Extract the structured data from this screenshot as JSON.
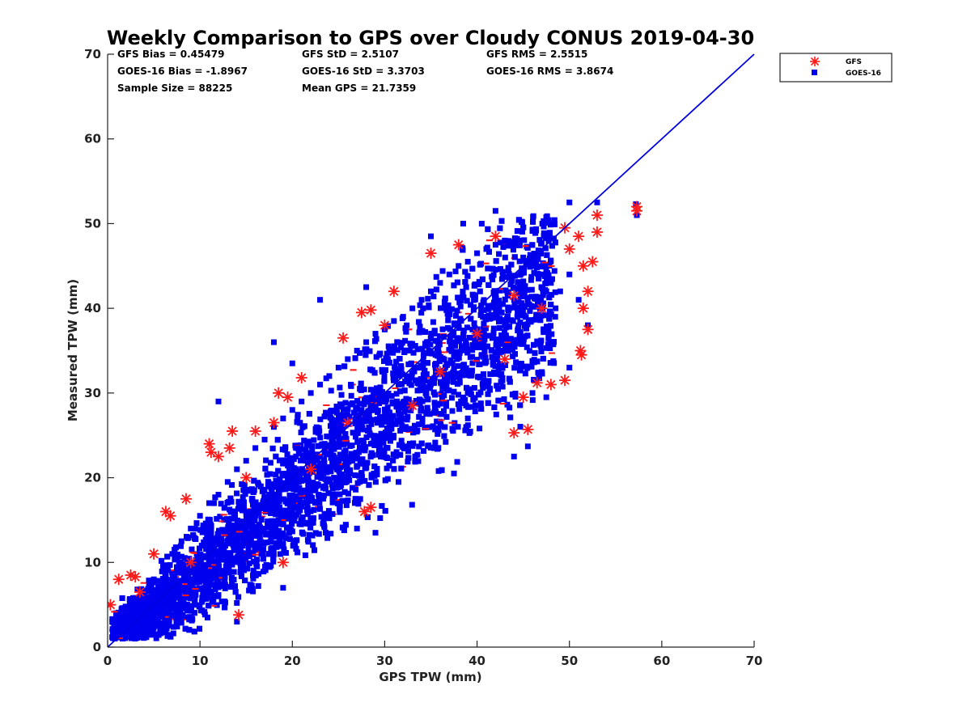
{
  "chart_data": {
    "type": "scatter",
    "title": "Weekly Comparison to GPS over Cloudy CONUS 2019-04-30",
    "xlabel": "GPS TPW (mm)",
    "ylabel": "Measured TPW (mm)",
    "xlim": [
      0,
      70
    ],
    "ylim": [
      0,
      70
    ],
    "xticks": [
      0,
      10,
      20,
      30,
      40,
      50,
      60,
      70
    ],
    "yticks": [
      0,
      10,
      20,
      30,
      40,
      50,
      60,
      70
    ],
    "grid": false,
    "legend_position": "top-right, outside plot",
    "reference_line": {
      "x": [
        0,
        70
      ],
      "y": [
        0,
        70
      ],
      "color": "#0000dd"
    },
    "stats": [
      [
        "GFS Bias = 0.45479",
        "GFS StD = 2.5107",
        "GFS RMS = 2.5515"
      ],
      [
        "GOES-16 Bias = -1.8967",
        "GOES-16 StD = 3.3703",
        "GOES-16 RMS = 3.8674"
      ],
      [
        "Sample Size = 88225",
        "Mean GPS = 21.7359",
        ""
      ]
    ],
    "series": [
      {
        "name": "GFS",
        "marker": "asterisk",
        "color": "#ff1a1a",
        "points": [
          [
            0.3,
            5.0
          ],
          [
            1.2,
            8.0
          ],
          [
            2.5,
            8.5
          ],
          [
            3.0,
            8.3
          ],
          [
            5.0,
            11.0
          ],
          [
            6.3,
            16.0
          ],
          [
            6.8,
            15.5
          ],
          [
            8.5,
            17.5
          ],
          [
            11.0,
            24.0
          ],
          [
            11.2,
            23.0
          ],
          [
            12.0,
            22.5
          ],
          [
            13.5,
            25.5
          ],
          [
            13.2,
            23.5
          ],
          [
            14.2,
            3.8
          ],
          [
            16.0,
            25.5
          ],
          [
            18.0,
            26.5
          ],
          [
            18.5,
            30.0
          ],
          [
            19.5,
            29.5
          ],
          [
            21.0,
            31.8
          ],
          [
            25.5,
            36.5
          ],
          [
            27.5,
            39.5
          ],
          [
            28.5,
            39.8
          ],
          [
            30.0,
            38.0
          ],
          [
            27.8,
            16.0
          ],
          [
            28.5,
            16.5
          ],
          [
            35.0,
            46.5
          ],
          [
            38.0,
            47.5
          ],
          [
            42.0,
            48.5
          ],
          [
            44.0,
            25.3
          ],
          [
            45.5,
            25.7
          ],
          [
            49.5,
            49.5
          ],
          [
            50.0,
            47.0
          ],
          [
            51.0,
            48.5
          ],
          [
            51.5,
            45.0
          ],
          [
            52.0,
            42.0
          ],
          [
            52.5,
            45.5
          ],
          [
            51.5,
            40.0
          ],
          [
            51.2,
            35.0
          ],
          [
            51.3,
            34.5
          ],
          [
            52.0,
            37.5
          ],
          [
            49.5,
            31.5
          ],
          [
            48.0,
            31.0
          ],
          [
            46.5,
            31.2
          ],
          [
            53.0,
            51.0
          ],
          [
            53.0,
            49.0
          ],
          [
            57.3,
            52.0
          ],
          [
            57.3,
            51.5
          ],
          [
            22.0,
            21.0
          ],
          [
            26.0,
            26.5
          ],
          [
            33.0,
            28.5
          ],
          [
            36.0,
            32.5
          ],
          [
            40.0,
            37.0
          ],
          [
            44.0,
            41.5
          ],
          [
            15.0,
            20.0
          ],
          [
            9.0,
            10.0
          ],
          [
            19.0,
            10.0
          ],
          [
            3.5,
            6.5
          ],
          [
            31.0,
            42.0
          ],
          [
            43.0,
            34.0
          ],
          [
            47.0,
            40.0
          ],
          [
            45.0,
            29.5
          ]
        ]
      },
      {
        "name": "GOES-16",
        "marker": "square",
        "color": "#0000ee",
        "points": [
          [
            0.5,
            3.0
          ],
          [
            1.0,
            2.5
          ],
          [
            1.5,
            4.5
          ],
          [
            2.0,
            3.0
          ],
          [
            2.5,
            5.5
          ],
          [
            3.0,
            2.0
          ],
          [
            3.5,
            4.0
          ],
          [
            4.0,
            6.5
          ],
          [
            4.5,
            3.0
          ],
          [
            5.0,
            8.0
          ],
          [
            5.5,
            5.0
          ],
          [
            6.0,
            9.5
          ],
          [
            6.5,
            6.0
          ],
          [
            7.0,
            11.0
          ],
          [
            7.5,
            4.0
          ],
          [
            8.0,
            12.5
          ],
          [
            8.5,
            8.0
          ],
          [
            9.0,
            14.0
          ],
          [
            9.5,
            10.0
          ],
          [
            10.0,
            15.5
          ],
          [
            10.5,
            7.0
          ],
          [
            11.0,
            17.0
          ],
          [
            11.5,
            12.0
          ],
          [
            12.0,
            18.0
          ],
          [
            12.5,
            9.0
          ],
          [
            13.0,
            19.5
          ],
          [
            13.5,
            14.0
          ],
          [
            14.0,
            21.0
          ],
          [
            14.5,
            11.0
          ],
          [
            15.0,
            22.0
          ],
          [
            15.5,
            16.0
          ],
          [
            16.0,
            23.5
          ],
          [
            16.5,
            13.0
          ],
          [
            17.0,
            24.5
          ],
          [
            17.5,
            18.0
          ],
          [
            18.0,
            26.0
          ],
          [
            18.5,
            15.0
          ],
          [
            19.0,
            27.0
          ],
          [
            19.5,
            20.0
          ],
          [
            20.0,
            28.0
          ],
          [
            20.5,
            16.5
          ],
          [
            21.0,
            29.0
          ],
          [
            21.5,
            22.0
          ],
          [
            22.0,
            30.0
          ],
          [
            22.5,
            18.5
          ],
          [
            23.0,
            31.0
          ],
          [
            23.5,
            24.0
          ],
          [
            24.0,
            32.0
          ],
          [
            24.5,
            20.0
          ],
          [
            25.0,
            33.0
          ],
          [
            25.5,
            26.0
          ],
          [
            26.0,
            34.0
          ],
          [
            26.5,
            22.0
          ],
          [
            27.0,
            35.0
          ],
          [
            27.5,
            28.0
          ],
          [
            28.0,
            36.0
          ],
          [
            28.5,
            24.0
          ],
          [
            29.0,
            37.0
          ],
          [
            29.5,
            30.0
          ],
          [
            30.0,
            37.5
          ],
          [
            30.5,
            26.0
          ],
          [
            31.0,
            38.5
          ],
          [
            31.5,
            31.0
          ],
          [
            32.0,
            39.0
          ],
          [
            32.5,
            28.0
          ],
          [
            33.0,
            40.0
          ],
          [
            33.5,
            33.0
          ],
          [
            34.0,
            41.0
          ],
          [
            34.5,
            30.0
          ],
          [
            35.0,
            42.0
          ],
          [
            35.5,
            34.5
          ],
          [
            36.0,
            43.0
          ],
          [
            36.5,
            31.5
          ],
          [
            37.0,
            44.0
          ],
          [
            37.5,
            36.0
          ],
          [
            38.0,
            45.0
          ],
          [
            38.5,
            33.0
          ],
          [
            39.0,
            45.5
          ],
          [
            39.5,
            37.5
          ],
          [
            40.0,
            46.5
          ],
          [
            40.5,
            34.5
          ],
          [
            41.0,
            47.0
          ],
          [
            41.5,
            39.0
          ],
          [
            42.0,
            47.5
          ],
          [
            42.5,
            36.0
          ],
          [
            43.0,
            48.0
          ],
          [
            43.5,
            40.0
          ],
          [
            44.0,
            47.5
          ],
          [
            44.5,
            38.0
          ],
          [
            45.0,
            46.0
          ],
          [
            45.5,
            41.0
          ],
          [
            46.0,
            45.0
          ],
          [
            46.5,
            39.0
          ],
          [
            47.0,
            44.0
          ],
          [
            47.5,
            42.0
          ],
          [
            48.0,
            43.0
          ],
          [
            48.5,
            40.0
          ],
          [
            49.0,
            42.0
          ],
          [
            50.0,
            44.0
          ],
          [
            51.0,
            41.0
          ],
          [
            52.0,
            38.0
          ],
          [
            50.0,
            52.5
          ],
          [
            53.0,
            52.5
          ],
          [
            57.3,
            51.0
          ],
          [
            57.2,
            52.3
          ],
          [
            28.0,
            42.5
          ],
          [
            20.0,
            33.5
          ],
          [
            44.0,
            22.5
          ],
          [
            45.5,
            23.7
          ],
          [
            47.5,
            29.5
          ],
          [
            31.5,
            19.5
          ],
          [
            37.5,
            20.5
          ],
          [
            29.0,
            13.5
          ],
          [
            27.0,
            14.0
          ],
          [
            19.0,
            7.0
          ],
          [
            14.0,
            3.0
          ],
          [
            4.0,
            1.5
          ],
          [
            6.0,
            2.0
          ],
          [
            9.0,
            3.5
          ],
          [
            42.0,
            51.5
          ],
          [
            38.5,
            50.0
          ],
          [
            35.0,
            48.5
          ],
          [
            23.0,
            41.0
          ],
          [
            18.0,
            36.0
          ],
          [
            12.0,
            29.0
          ],
          [
            50.0,
            33.0
          ],
          [
            46.0,
            30.0
          ],
          [
            39.0,
            27.0
          ]
        ]
      }
    ]
  }
}
